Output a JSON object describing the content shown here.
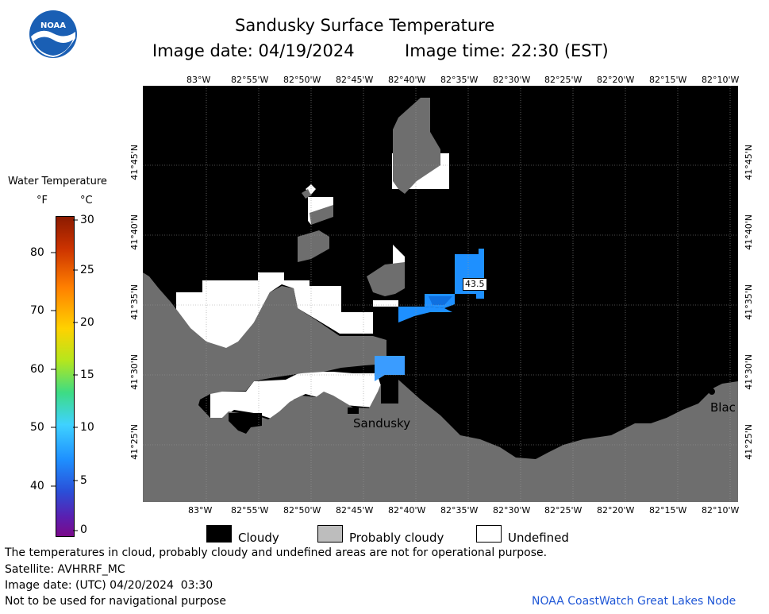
{
  "header": {
    "title": "Sandusky Surface Temperature",
    "image_date": "Image date: 04/19/2024",
    "image_time": "Image time: 22:30 (EST)"
  },
  "logo_text": "NOAA",
  "colorbar": {
    "title": "Water Temperature",
    "unit_f": "°F",
    "unit_c": "°C",
    "f_ticks": [
      "80",
      "70",
      "60",
      "50",
      "40"
    ],
    "c_ticks": [
      "30",
      "25",
      "20",
      "15",
      "10",
      "5",
      "0"
    ]
  },
  "axes": {
    "lon_labels": [
      "83°W",
      "82°55'W",
      "82°50'W",
      "82°45'W",
      "82°40'W",
      "82°35'W",
      "82°30'W",
      "82°25'W",
      "82°20'W",
      "82°15'W",
      "82°10'W"
    ],
    "lat_labels": [
      "41°45'N",
      "41°40'N",
      "41°35'N",
      "41°30'N",
      "41°25'N"
    ]
  },
  "map": {
    "temp_label": "43.5",
    "city_sandusky": "Sandusky",
    "city_partial": "Blac"
  },
  "legend": {
    "cloudy": "Cloudy",
    "probably_cloudy": "Probably cloudy",
    "undefined": "Undefined",
    "colors": {
      "cloudy": "#000000",
      "probably_cloudy": "#6e6e6e",
      "undefined": "#ffffff",
      "water_warm": "#1e90ff"
    }
  },
  "footer": {
    "note": "The temperatures in cloud, probably cloudy and undefined areas are not for operational purpose.",
    "satellite": "Satellite: AVHRRF_MC",
    "utc_date": "Image date: (UTC) 04/20/2024  03:30",
    "nav_warning": "Not to be used for navigational purpose",
    "credit": "NOAA CoastWatch Great Lakes Node"
  }
}
